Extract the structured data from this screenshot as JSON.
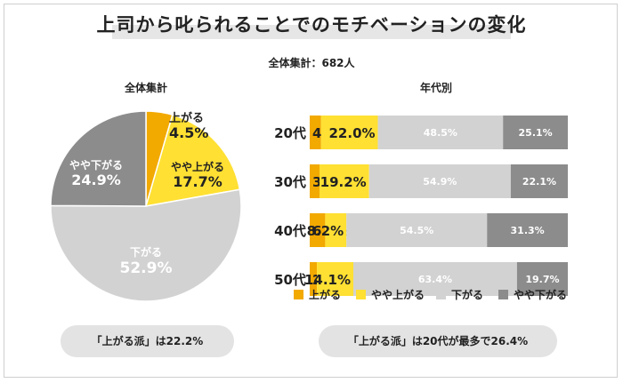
{
  "title": "上司から叱られることでのモチベーションの変化",
  "total_label": "全体集計：682人",
  "colors": {
    "up": "#f2a900",
    "slightly_up": "#ffe033",
    "down": "#d2d2d2",
    "slightly_down": "#8c8c8c"
  },
  "chart_data": [
    {
      "type": "pie",
      "title": "全体集計",
      "slices": [
        {
          "label": "上がる",
          "value": 4.5,
          "value_label": "4.5%"
        },
        {
          "label": "やや上がる",
          "value": 17.7,
          "value_label": "17.7%"
        },
        {
          "label": "下がる",
          "value": 52.9,
          "value_label": "52.9%"
        },
        {
          "label": "やや下がる",
          "value": 24.9,
          "value_label": "24.9%"
        }
      ]
    },
    {
      "type": "bar",
      "orientation": "horizontal",
      "stacked": true,
      "title": "年代別",
      "categories": [
        "20代",
        "30代",
        "40代",
        "50代"
      ],
      "series": [
        {
          "name": "上がる",
          "values": [
            4.4,
            3.8,
            6.0,
            2.8
          ]
        },
        {
          "name": "やや上がる",
          "values": [
            22.0,
            19.2,
            8.2,
            14.1
          ]
        },
        {
          "name": "下がる",
          "values": [
            48.5,
            54.9,
            54.5,
            63.4
          ]
        },
        {
          "name": "やや下がる",
          "values": [
            25.1,
            22.1,
            31.3,
            19.7
          ]
        }
      ],
      "legend": "bottom"
    }
  ],
  "summary_left": "「上がる派」は22.2%",
  "summary_right": "「上がる派」は20代が最多で26.4%"
}
